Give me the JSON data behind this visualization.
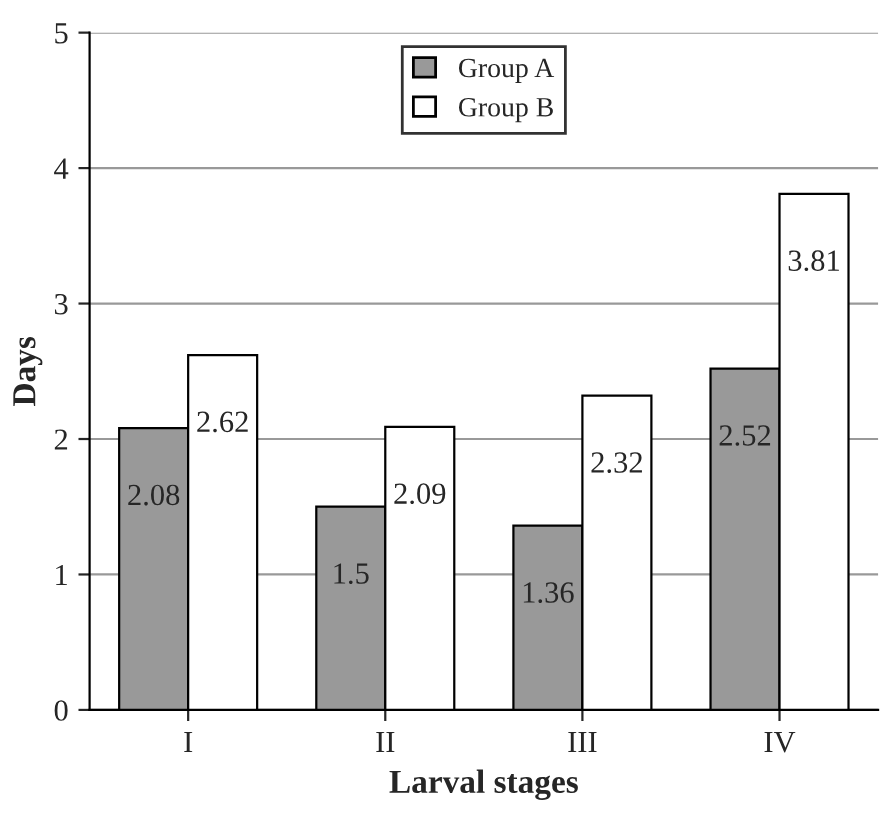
{
  "chart_data": {
    "type": "bar",
    "xlabel": "Larval stages",
    "ylabel": "Days",
    "categories": [
      "I",
      "II",
      "III",
      "IV"
    ],
    "series": [
      {
        "name": "Group A",
        "color": "#999999",
        "values": [
          2.08,
          1.5,
          1.36,
          2.52
        ]
      },
      {
        "name": "Group B",
        "color": "#ffffff",
        "values": [
          2.62,
          2.09,
          2.32,
          3.81
        ]
      }
    ],
    "ylim": [
      0,
      5
    ],
    "yticks": [
      0,
      1,
      2,
      3,
      4,
      5
    ],
    "grid": "y",
    "legend": "top",
    "data_labels": true
  }
}
